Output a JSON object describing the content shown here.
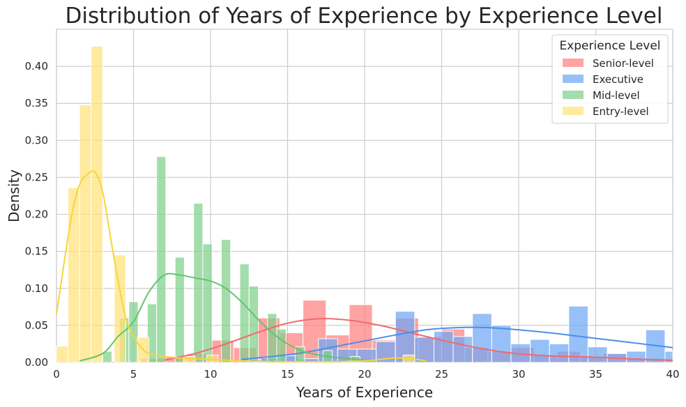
{
  "chart_data": {
    "type": "histogram",
    "title": "Distribution of Years of Experience by Experience Level",
    "xlabel": "Years of Experience",
    "ylabel": "Density",
    "xlim": [
      0,
      40
    ],
    "ylim": [
      0,
      0.45
    ],
    "xticks": [
      "0",
      "5",
      "10",
      "15",
      "20",
      "25",
      "30",
      "35",
      "40"
    ],
    "yticks": [
      "0.00",
      "0.05",
      "0.10",
      "0.15",
      "0.20",
      "0.25",
      "0.30",
      "0.35",
      "0.40"
    ],
    "grid": true,
    "legend": {
      "title": "Experience Level",
      "position": "top-right"
    },
    "series": [
      {
        "name": "Senior-level",
        "color": "#ff7f7f",
        "line_color": "#f06a6a",
        "bins": [
          {
            "x0": 5.5,
            "x1": 7.0,
            "y": 0.005
          },
          {
            "x0": 7.0,
            "x1": 8.5,
            "y": 0.008
          },
          {
            "x0": 8.5,
            "x1": 10.0,
            "y": 0.012
          },
          {
            "x0": 10.0,
            "x1": 11.5,
            "y": 0.03
          },
          {
            "x0": 11.5,
            "x1": 13.0,
            "y": 0.02
          },
          {
            "x0": 13.0,
            "x1": 14.5,
            "y": 0.06
          },
          {
            "x0": 14.5,
            "x1": 16.0,
            "y": 0.04
          },
          {
            "x0": 16.0,
            "x1": 17.5,
            "y": 0.084
          },
          {
            "x0": 17.5,
            "x1": 19.0,
            "y": 0.037
          },
          {
            "x0": 19.0,
            "x1": 20.5,
            "y": 0.078
          },
          {
            "x0": 20.5,
            "x1": 22.0,
            "y": 0.03
          },
          {
            "x0": 22.0,
            "x1": 23.5,
            "y": 0.06
          },
          {
            "x0": 23.5,
            "x1": 25.0,
            "y": 0.035
          },
          {
            "x0": 25.0,
            "x1": 26.5,
            "y": 0.045
          },
          {
            "x0": 26.5,
            "x1": 28.0,
            "y": 0.02
          },
          {
            "x0": 28.0,
            "x1": 29.5,
            "y": 0.015
          },
          {
            "x0": 29.5,
            "x1": 31.0,
            "y": 0.02
          },
          {
            "x0": 31.0,
            "x1": 32.5,
            "y": 0.01
          },
          {
            "x0": 32.5,
            "x1": 34.0,
            "y": 0.015
          },
          {
            "x0": 34.0,
            "x1": 35.5,
            "y": 0.008
          },
          {
            "x0": 35.5,
            "x1": 37.0,
            "y": 0.012
          },
          {
            "x0": 37.0,
            "x1": 38.5,
            "y": 0.005
          },
          {
            "x0": 38.5,
            "x1": 40.0,
            "y": 0.004
          }
        ],
        "kde": [
          [
            7,
            0.003
          ],
          [
            9,
            0.012
          ],
          [
            11,
            0.025
          ],
          [
            13,
            0.04
          ],
          [
            15,
            0.053
          ],
          [
            17,
            0.059
          ],
          [
            19,
            0.057
          ],
          [
            21,
            0.05
          ],
          [
            23,
            0.04
          ],
          [
            25,
            0.03
          ],
          [
            27,
            0.021
          ],
          [
            29,
            0.014
          ],
          [
            31,
            0.01
          ],
          [
            33,
            0.008
          ],
          [
            35,
            0.007
          ],
          [
            37,
            0.005
          ],
          [
            40,
            0.003
          ]
        ]
      },
      {
        "name": "Executive",
        "color": "#6fa8f5",
        "line_color": "#4a8ee8",
        "bins": [
          {
            "x0": 12.0,
            "x1": 13.25,
            "y": 0.004
          },
          {
            "x0": 13.25,
            "x1": 14.5,
            "y": 0.006
          },
          {
            "x0": 14.5,
            "x1": 15.75,
            "y": 0.009
          },
          {
            "x0": 15.75,
            "x1": 17.0,
            "y": 0.005
          },
          {
            "x0": 17.0,
            "x1": 18.25,
            "y": 0.032
          },
          {
            "x0": 18.25,
            "x1": 19.5,
            "y": 0.018
          },
          {
            "x0": 19.5,
            "x1": 20.75,
            "y": 0.018
          },
          {
            "x0": 20.75,
            "x1": 22.0,
            "y": 0.028
          },
          {
            "x0": 22.0,
            "x1": 23.25,
            "y": 0.069
          },
          {
            "x0": 23.25,
            "x1": 24.5,
            "y": 0.034
          },
          {
            "x0": 24.5,
            "x1": 25.75,
            "y": 0.042
          },
          {
            "x0": 25.75,
            "x1": 27.0,
            "y": 0.035
          },
          {
            "x0": 27.0,
            "x1": 28.25,
            "y": 0.066
          },
          {
            "x0": 28.25,
            "x1": 29.5,
            "y": 0.05
          },
          {
            "x0": 29.5,
            "x1": 30.75,
            "y": 0.025
          },
          {
            "x0": 30.75,
            "x1": 32.0,
            "y": 0.031
          },
          {
            "x0": 32.0,
            "x1": 33.25,
            "y": 0.025
          },
          {
            "x0": 33.25,
            "x1": 34.5,
            "y": 0.076
          },
          {
            "x0": 34.5,
            "x1": 35.75,
            "y": 0.021
          },
          {
            "x0": 35.75,
            "x1": 37.0,
            "y": 0.012
          },
          {
            "x0": 37.0,
            "x1": 38.25,
            "y": 0.015
          },
          {
            "x0": 38.25,
            "x1": 39.5,
            "y": 0.044
          },
          {
            "x0": 39.5,
            "x1": 40.0,
            "y": 0.015
          }
        ],
        "kde": [
          [
            12,
            0.004
          ],
          [
            14,
            0.008
          ],
          [
            16,
            0.013
          ],
          [
            18,
            0.021
          ],
          [
            20,
            0.029
          ],
          [
            22,
            0.037
          ],
          [
            24,
            0.044
          ],
          [
            26,
            0.047
          ],
          [
            28,
            0.047
          ],
          [
            30,
            0.044
          ],
          [
            32,
            0.04
          ],
          [
            34,
            0.035
          ],
          [
            36,
            0.03
          ],
          [
            38,
            0.025
          ],
          [
            40,
            0.02
          ]
        ]
      },
      {
        "name": "Mid-level",
        "color": "#7fd08a",
        "line_color": "#62c46e",
        "bins": [
          {
            "x0": 3.0,
            "x1": 3.6,
            "y": 0.015
          },
          {
            "x0": 4.1,
            "x1": 4.7,
            "y": 0.06
          },
          {
            "x0": 4.7,
            "x1": 5.3,
            "y": 0.082
          },
          {
            "x0": 5.9,
            "x1": 6.5,
            "y": 0.079
          },
          {
            "x0": 6.5,
            "x1": 7.1,
            "y": 0.278
          },
          {
            "x0": 7.7,
            "x1": 8.3,
            "y": 0.142
          },
          {
            "x0": 8.9,
            "x1": 9.5,
            "y": 0.215
          },
          {
            "x0": 9.5,
            "x1": 10.1,
            "y": 0.16
          },
          {
            "x0": 10.7,
            "x1": 11.3,
            "y": 0.166
          },
          {
            "x0": 11.9,
            "x1": 12.5,
            "y": 0.133
          },
          {
            "x0": 12.5,
            "x1": 13.1,
            "y": 0.103
          },
          {
            "x0": 13.7,
            "x1": 14.3,
            "y": 0.066
          },
          {
            "x0": 14.3,
            "x1": 14.9,
            "y": 0.045
          },
          {
            "x0": 15.5,
            "x1": 16.1,
            "y": 0.021
          },
          {
            "x0": 17.3,
            "x1": 17.9,
            "y": 0.016
          },
          {
            "x0": 19.1,
            "x1": 19.7,
            "y": 0.008
          }
        ],
        "kde": [
          [
            1.5,
            0.002
          ],
          [
            3,
            0.012
          ],
          [
            4,
            0.035
          ],
          [
            5,
            0.055
          ],
          [
            6,
            0.095
          ],
          [
            7,
            0.118
          ],
          [
            8,
            0.118
          ],
          [
            9,
            0.114
          ],
          [
            10,
            0.11
          ],
          [
            11,
            0.1
          ],
          [
            12,
            0.082
          ],
          [
            13,
            0.06
          ],
          [
            14,
            0.04
          ],
          [
            15,
            0.025
          ],
          [
            16,
            0.015
          ],
          [
            17,
            0.01
          ],
          [
            18,
            0.007
          ],
          [
            19,
            0.005
          ],
          [
            20,
            0.003
          ]
        ]
      },
      {
        "name": "Entry-level",
        "color": "#ffe27a",
        "line_color": "#f7d43a",
        "bins": [
          {
            "x0": 0.0,
            "x1": 0.75,
            "y": 0.022
          },
          {
            "x0": 0.75,
            "x1": 1.5,
            "y": 0.236
          },
          {
            "x0": 1.5,
            "x1": 2.25,
            "y": 0.348
          },
          {
            "x0": 2.25,
            "x1": 3.0,
            "y": 0.427
          },
          {
            "x0": 3.75,
            "x1": 4.5,
            "y": 0.145
          },
          {
            "x0": 5.25,
            "x1": 6.0,
            "y": 0.034
          },
          {
            "x0": 8.25,
            "x1": 9.0,
            "y": 0.008
          },
          {
            "x0": 9.75,
            "x1": 10.5,
            "y": 0.01
          },
          {
            "x0": 22.5,
            "x1": 23.25,
            "y": 0.01
          }
        ],
        "kde": [
          [
            0,
            0.065
          ],
          [
            0.5,
            0.135
          ],
          [
            1,
            0.2
          ],
          [
            1.5,
            0.24
          ],
          [
            2,
            0.254
          ],
          [
            2.5,
            0.257
          ],
          [
            3,
            0.23
          ],
          [
            3.5,
            0.17
          ],
          [
            4,
            0.11
          ],
          [
            4.5,
            0.06
          ],
          [
            5,
            0.035
          ],
          [
            5.5,
            0.02
          ],
          [
            6,
            0.012
          ],
          [
            7,
            0.008
          ],
          [
            8,
            0.006
          ],
          [
            9,
            0.005
          ],
          [
            10,
            0.004
          ],
          [
            11,
            0.003
          ],
          [
            12,
            0.002
          ],
          [
            14,
            0.001
          ],
          [
            16,
            0.001
          ],
          [
            18,
            0.001
          ],
          [
            20,
            0.002
          ],
          [
            21,
            0.004
          ],
          [
            22,
            0.006
          ],
          [
            23,
            0.005
          ],
          [
            24,
            0.002
          ]
        ]
      }
    ]
  }
}
